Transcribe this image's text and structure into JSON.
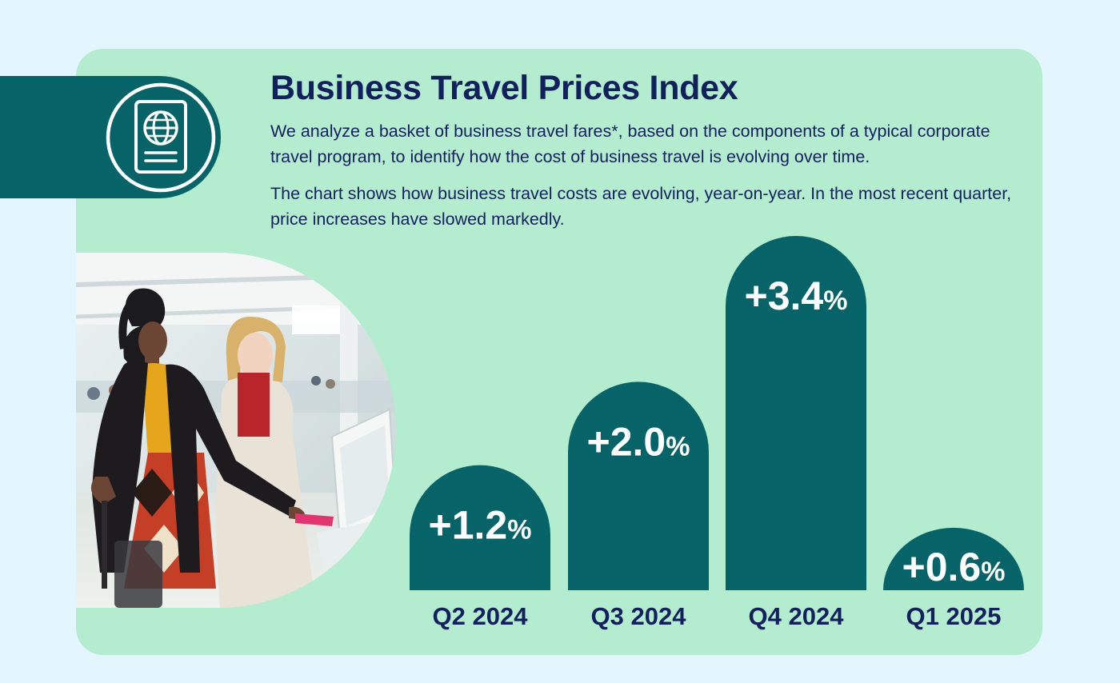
{
  "header": {
    "title": "Business Travel Prices Index",
    "paragraph_1": "We analyze a basket of business travel fares*, based on the components of a typical corporate travel program, to identify how the cost of business travel is evolving over time.",
    "paragraph_2": "The chart shows how business travel costs are evolving, year-on-year. In the most recent quarter, price increases have slowed markedly."
  },
  "icons": {
    "badge": "passport-icon"
  },
  "colors": {
    "page_bg": "#e3f6fd",
    "card_bg": "#b3ecce",
    "bar": "#066468",
    "text_dark": "#12205e",
    "bar_text": "#ffffff"
  },
  "chart_data": {
    "type": "bar",
    "title": "",
    "xlabel": "",
    "ylabel": "",
    "categories": [
      "Q2 2024",
      "Q3 2024",
      "Q4 2024",
      "Q1 2025"
    ],
    "values": [
      1.2,
      2.0,
      3.4,
      0.6
    ],
    "data_labels": [
      "+1.2",
      "+2.0",
      "+3.4",
      "+0.6"
    ],
    "unit": "%",
    "ylim": [
      0,
      3.4
    ],
    "grid": false,
    "legend": "none"
  }
}
